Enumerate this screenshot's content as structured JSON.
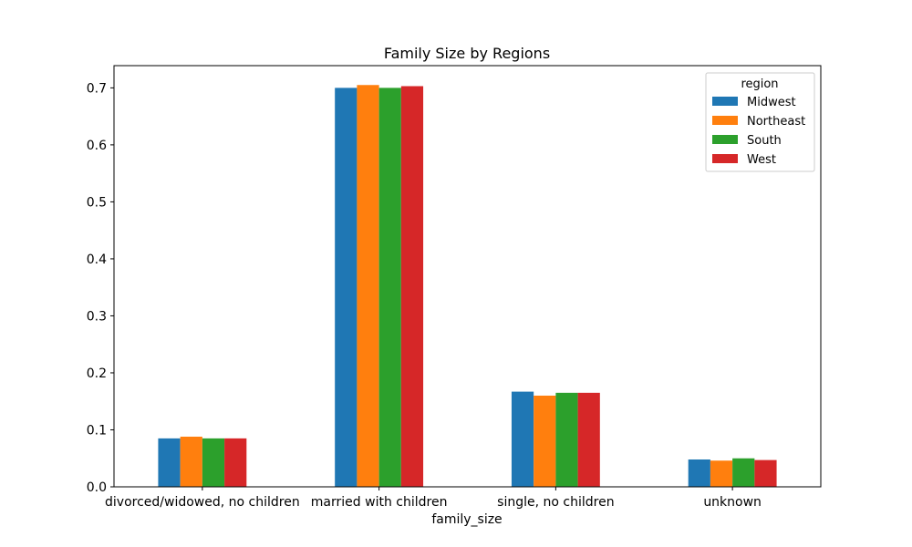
{
  "chart_data": {
    "type": "bar",
    "title": "Family Size by Regions",
    "xlabel": "family_size",
    "ylabel": "",
    "categories": [
      "divorced/widowed, no children",
      "married with children",
      "single, no children",
      "unknown"
    ],
    "series": [
      {
        "name": "Midwest",
        "color": "#1f77b4",
        "values": [
          0.085,
          0.7,
          0.167,
          0.048
        ]
      },
      {
        "name": "Northeast",
        "color": "#ff7f0e",
        "values": [
          0.088,
          0.705,
          0.16,
          0.046
        ]
      },
      {
        "name": "South",
        "color": "#2ca02c",
        "values": [
          0.085,
          0.7,
          0.165,
          0.05
        ]
      },
      {
        "name": "West",
        "color": "#d62728",
        "values": [
          0.085,
          0.703,
          0.165,
          0.047
        ]
      }
    ],
    "ylim": [
      0,
      0.739
    ],
    "yticks": [
      "0.0",
      "0.1",
      "0.2",
      "0.3",
      "0.4",
      "0.5",
      "0.6",
      "0.7"
    ],
    "grid": false,
    "legend": {
      "title": "region",
      "position": "top-right"
    }
  }
}
